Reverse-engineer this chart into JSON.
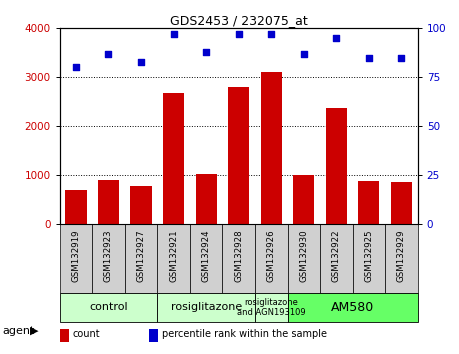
{
  "title": "GDS2453 / 232075_at",
  "samples": [
    "GSM132919",
    "GSM132923",
    "GSM132927",
    "GSM132921",
    "GSM132924",
    "GSM132928",
    "GSM132926",
    "GSM132930",
    "GSM132922",
    "GSM132925",
    "GSM132929"
  ],
  "counts": [
    700,
    900,
    780,
    2680,
    1020,
    2790,
    3100,
    1010,
    2380,
    880,
    860
  ],
  "percentiles": [
    80,
    87,
    83,
    97,
    88,
    97,
    97,
    87,
    95,
    85,
    85
  ],
  "bar_color": "#cc0000",
  "dot_color": "#0000cc",
  "ylim_left": [
    0,
    4000
  ],
  "ylim_right": [
    0,
    100
  ],
  "yticks_left": [
    0,
    1000,
    2000,
    3000,
    4000
  ],
  "yticks_right": [
    0,
    25,
    50,
    75,
    100
  ],
  "groups": [
    {
      "label": "control",
      "start": 0,
      "end": 3,
      "color": "#ccffcc",
      "fontsize": 8
    },
    {
      "label": "rosiglitazone",
      "start": 3,
      "end": 6,
      "color": "#ccffcc",
      "fontsize": 8
    },
    {
      "label": "rosiglitazone\nand AGN193109",
      "start": 6,
      "end": 7,
      "color": "#ccffcc",
      "fontsize": 6
    },
    {
      "label": "AM580",
      "start": 7,
      "end": 11,
      "color": "#66ff66",
      "fontsize": 9
    }
  ],
  "agent_label": "agent",
  "legend_count_label": "count",
  "legend_percentile_label": "percentile rank within the sample",
  "bg_color": "#ffffff",
  "tick_bg_color": "#d0d0d0"
}
